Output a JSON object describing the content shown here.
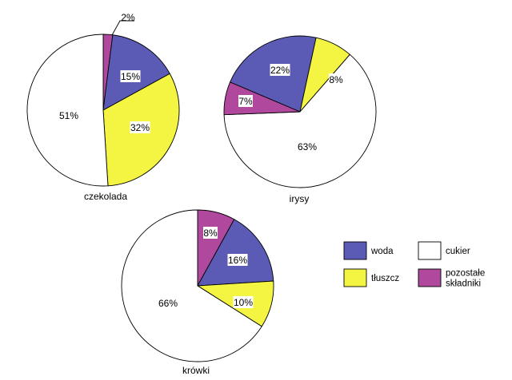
{
  "chart_data": [
    {
      "type": "pie",
      "caption": "czekolada",
      "slices": [
        {
          "key": "pozostale",
          "value": 2,
          "label": "2%"
        },
        {
          "key": "woda",
          "value": 15,
          "label": "15%"
        },
        {
          "key": "tluszcz",
          "value": 32,
          "label": "32%"
        },
        {
          "key": "cukier",
          "value": 51,
          "label": "51%"
        }
      ]
    },
    {
      "type": "pie",
      "caption": "irysy",
      "slices": [
        {
          "key": "woda",
          "value": 22,
          "label": "22%"
        },
        {
          "key": "tluszcz",
          "value": 8,
          "label": "8%"
        },
        {
          "key": "cukier",
          "value": 63,
          "label": "63%"
        },
        {
          "key": "pozostale",
          "value": 7,
          "label": "7%"
        }
      ]
    },
    {
      "type": "pie",
      "caption": "krówki",
      "slices": [
        {
          "key": "pozostale",
          "value": 8,
          "label": "8%"
        },
        {
          "key": "woda",
          "value": 16,
          "label": "16%"
        },
        {
          "key": "tluszcz",
          "value": 10,
          "label": "10%"
        },
        {
          "key": "cukier",
          "value": 66,
          "label": "66%"
        }
      ]
    }
  ],
  "legend": [
    {
      "key": "woda",
      "lines": [
        "woda"
      ],
      "color": "#5b5bb5"
    },
    {
      "key": "cukier",
      "lines": [
        "cukier"
      ],
      "color": "#ffffff"
    },
    {
      "key": "tluszcz",
      "lines": [
        "tłuszcz"
      ],
      "color": "#f4f442"
    },
    {
      "key": "pozostale",
      "lines": [
        "pozostałe",
        "składniki"
      ],
      "color": "#b0489e"
    }
  ]
}
